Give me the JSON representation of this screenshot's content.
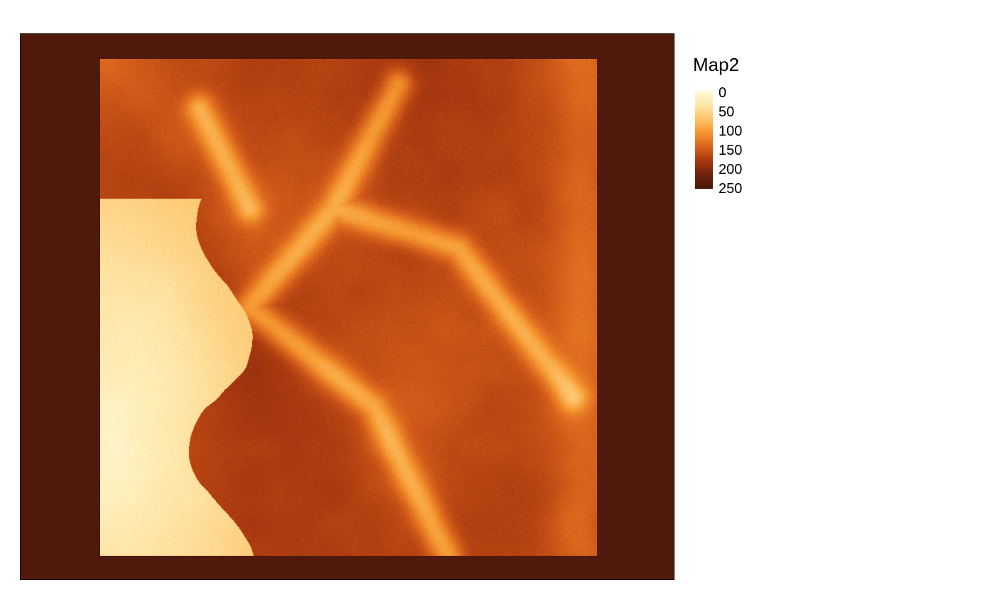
{
  "map": {
    "background_color": "#4f1a0c",
    "frame_color": "#1a0703",
    "raster_name": "Map2"
  },
  "legend": {
    "title": "Map2",
    "labels": [
      "0",
      "50",
      "100",
      "150",
      "200",
      "250"
    ],
    "palette": [
      "#fffbd9",
      "#fee6a8",
      "#fdc46a",
      "#f5962f",
      "#d9631c",
      "#a8380f",
      "#6e230c",
      "#4a190a"
    ]
  },
  "chart_data": {
    "type": "heatmap",
    "title": "",
    "legend_title": "Map2",
    "value_range": [
      0,
      250
    ],
    "legend_ticks": [
      0,
      50,
      100,
      150,
      200,
      250
    ],
    "colormap": "light yellow (low) to dark brown (high)",
    "legend_placement": "right"
  }
}
